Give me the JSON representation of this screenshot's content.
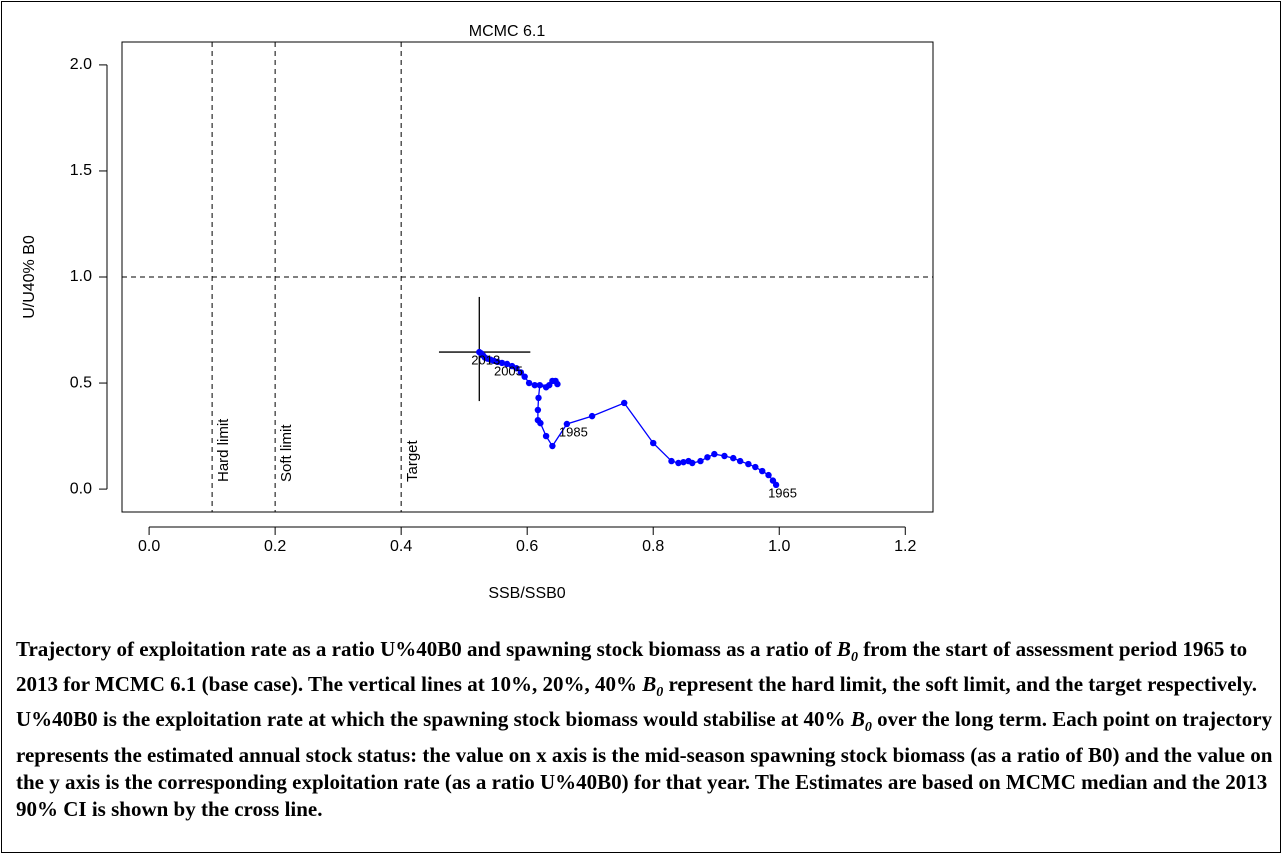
{
  "chart_data": {
    "type": "trajectory",
    "title": "MCMC 6.1",
    "xlabel": "SSB/SSB0",
    "ylabel": "U/U40% B0",
    "x": [
      0.995,
      0.99,
      0.983,
      0.973,
      0.962,
      0.951,
      0.938,
      0.927,
      0.913,
      0.897,
      0.886,
      0.875,
      0.862,
      0.856,
      0.848,
      0.84,
      0.829,
      0.8,
      0.754,
      0.703,
      0.663,
      0.64,
      0.63,
      0.621,
      0.617,
      0.617,
      0.618,
      0.62,
      0.635,
      0.645,
      0.648,
      0.64,
      0.63,
      0.612,
      0.603,
      0.596,
      0.59,
      0.583,
      0.576,
      0.568,
      0.56,
      0.553,
      0.547,
      0.542,
      0.537,
      0.533,
      0.53,
      0.527,
      0.524
    ],
    "values": [
      0.02,
      0.04,
      0.066,
      0.085,
      0.104,
      0.118,
      0.132,
      0.146,
      0.156,
      0.165,
      0.15,
      0.132,
      0.123,
      0.132,
      0.127,
      0.123,
      0.132,
      0.217,
      0.406,
      0.344,
      0.307,
      0.203,
      0.25,
      0.311,
      0.325,
      0.373,
      0.43,
      0.49,
      0.49,
      0.51,
      0.495,
      0.51,
      0.48,
      0.49,
      0.5,
      0.53,
      0.55,
      0.57,
      0.58,
      0.59,
      0.595,
      0.6,
      0.605,
      0.61,
      0.615,
      0.62,
      0.63,
      0.64,
      0.646
    ],
    "point_labels": [
      "1965",
      null,
      null,
      null,
      null,
      null,
      null,
      null,
      null,
      null,
      null,
      null,
      null,
      null,
      null,
      null,
      null,
      null,
      null,
      null,
      "1985",
      null,
      null,
      null,
      null,
      null,
      null,
      null,
      null,
      null,
      null,
      null,
      null,
      null,
      null,
      null,
      null,
      null,
      null,
      null,
      "2005",
      null,
      null,
      null,
      null,
      null,
      null,
      null,
      "2013"
    ],
    "color": "#0000ff",
    "ci": {
      "x": [
        0.46,
        0.605
      ],
      "y": [
        0.415,
        0.906
      ]
    },
    "reference_vlines": [
      {
        "value": 0.1,
        "label": "Hard limit"
      },
      {
        "value": 0.2,
        "label": "Soft limit"
      },
      {
        "value": 0.4,
        "label": "Target"
      }
    ],
    "reference_hline": 1.0,
    "xlim": [
      -0.043,
      1.244
    ],
    "ylim": [
      -0.108,
      2.108
    ],
    "xticks": [
      {
        "value": 0,
        "label": "0.0"
      },
      0.2,
      0.4,
      0.6,
      0.8,
      {
        "value": 1,
        "label": "1.0"
      },
      1.2
    ],
    "yticks": [
      {
        "value": 0,
        "label": "0.0"
      },
      0.5,
      {
        "value": 1,
        "label": "1.0"
      },
      1.5,
      {
        "value": 2,
        "label": "2.0"
      }
    ]
  },
  "caption": [
    "Trajectory of exploitation rate as a ratio U%40B0 and spawning stock biomass as a ratio of ",
    {
      "base": "B",
      "sub": "0"
    },
    " from the start of assessment period 1965 to 2013 for MCMC 6.1 (base case). The vertical lines at 10%, 20%, 40% ",
    {
      "base": "B",
      "sub": "0"
    },
    " represent the hard limit, the soft limit, and the target respectively. U%40B0 is the exploitation rate at which the spawning stock biomass would stabilise at 40% ",
    {
      "base": "B",
      "sub": "0"
    },
    " over the long term. Each point on trajectory represents the estimated annual stock status: the value on x axis is the mid-season spawning stock biomass (as a ratio of B0) and the value on the y axis is the corresponding exploitation rate (as a ratio U%40B0) for that year.  The Estimates are based on MCMC median and the 2013 90% CI is shown by the cross line."
  ]
}
